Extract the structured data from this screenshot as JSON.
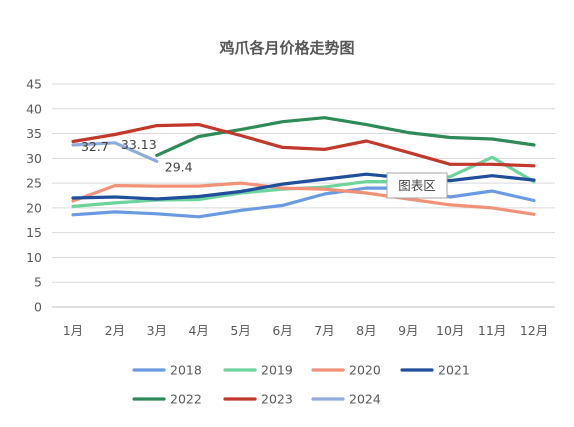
{
  "chart_data": {
    "type": "line",
    "title": "鸡爪各月价格走势图",
    "xlabel": "",
    "ylabel": "",
    "categories": [
      "1月",
      "2月",
      "3月",
      "4月",
      "5月",
      "6月",
      "7月",
      "8月",
      "9月",
      "10月",
      "11月",
      "12月"
    ],
    "ylim": [
      0,
      45
    ],
    "yticks": [
      0,
      5,
      10,
      15,
      20,
      25,
      30,
      35,
      40,
      45
    ],
    "grid": true,
    "legend_position": "bottom",
    "series": [
      {
        "name": "2018",
        "color": "#6a9ae0",
        "values": [
          18.6,
          19.2,
          18.8,
          18.2,
          19.5,
          20.5,
          22.8,
          24.0,
          24.0,
          22.2,
          23.4,
          21.5
        ]
      },
      {
        "name": "2019",
        "color": "#6dd49c",
        "values": [
          20.3,
          21.0,
          21.6,
          21.7,
          23.0,
          23.8,
          24.2,
          25.3,
          25.3,
          26.3,
          30.2,
          25.3
        ]
      },
      {
        "name": "2020",
        "color": "#ef9278",
        "values": [
          21.4,
          24.5,
          24.4,
          24.4,
          25.0,
          24.0,
          23.8,
          23.0,
          21.8,
          20.6,
          20.0,
          18.7
        ]
      },
      {
        "name": "2021",
        "color": "#1f4e9a",
        "values": [
          22.0,
          22.2,
          21.8,
          22.3,
          23.3,
          24.8,
          25.8,
          26.8,
          26.0,
          25.5,
          26.5,
          25.6
        ]
      },
      {
        "name": "2022",
        "color": "#2e8b57",
        "values": [
          null,
          null,
          30.6,
          34.4,
          35.8,
          37.4,
          38.2,
          36.8,
          35.2,
          34.2,
          33.9,
          32.7
        ]
      },
      {
        "name": "2023",
        "color": "#c0392b",
        "values": [
          33.4,
          34.8,
          36.6,
          36.8,
          34.6,
          32.2,
          31.8,
          33.5,
          31.2,
          28.8,
          28.8,
          28.5
        ]
      },
      {
        "name": "2024",
        "color": "#8faadc",
        "values": [
          32.7,
          33.13,
          29.4,
          null,
          null,
          null,
          null,
          null,
          null,
          null,
          null,
          null
        ]
      }
    ],
    "data_labels": [
      {
        "series": "2024",
        "index": 0,
        "text": "32.7"
      },
      {
        "series": "2024",
        "index": 1,
        "text": "33.13"
      },
      {
        "series": "2024",
        "index": 2,
        "text": "29.4"
      }
    ],
    "tooltip": {
      "text": "图表区"
    }
  }
}
